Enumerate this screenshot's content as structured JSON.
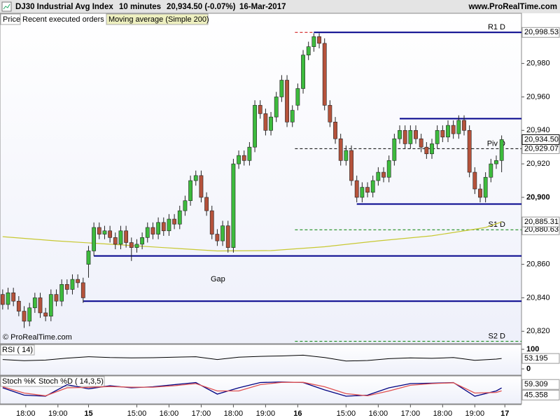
{
  "header": {
    "title": "DJ30 Industrial Avg Index",
    "interval": "10 minutes",
    "quote": "20,934.50 (-0.07%)",
    "date": "16-Mar-2017",
    "site": "www.ProRealTime.com"
  },
  "chart_data": [
    {
      "type": "candlestick",
      "panel_label": "Price",
      "legend": [
        {
          "name": "Recent executed orders",
          "color": "#e05a5a"
        },
        {
          "name": "Moving average (Simple 200)",
          "color": "#c8c832"
        }
      ],
      "up_color": "#3dbb3d",
      "down_color": "#b5523b",
      "xlim": [
        -0.5,
        96.7
      ],
      "ylim": [
        20813,
        21002
      ],
      "yticks": [
        {
          "value": 20820,
          "label": "20,820"
        },
        {
          "value": 20840,
          "label": "20,840"
        },
        {
          "value": 20860,
          "label": "20,860"
        },
        {
          "value": 20880,
          "label": "20,880"
        },
        {
          "value": 20900,
          "label": "20,900"
        },
        {
          "value": 20920,
          "label": "20,920"
        },
        {
          "value": 20940,
          "label": "20,940"
        },
        {
          "value": 20960,
          "label": "20,960"
        },
        {
          "value": 20980,
          "label": "20,980"
        }
      ],
      "xticks": [
        {
          "value": 4.3,
          "label": "18:00"
        },
        {
          "value": 10.3,
          "label": "19:00"
        },
        {
          "value": 16,
          "label": "15"
        },
        {
          "value": 25,
          "label": "15:00"
        },
        {
          "value": 31,
          "label": "16:00"
        },
        {
          "value": 37,
          "label": "17:00"
        },
        {
          "value": 43,
          "label": "18:00"
        },
        {
          "value": 49,
          "label": "19:00"
        },
        {
          "value": 55,
          "label": "16"
        },
        {
          "value": 64,
          "label": "15:00"
        },
        {
          "value": 70,
          "label": "16:00"
        },
        {
          "value": 76,
          "label": "17:00"
        },
        {
          "value": 82,
          "label": "18:00"
        },
        {
          "value": 88,
          "label": "19:00"
        },
        {
          "value": 93.6,
          "label": "17"
        }
      ],
      "open": [
        20842,
        20836,
        20843,
        20838,
        20832,
        20826,
        20834,
        20840,
        20831,
        20829,
        20842,
        20838,
        20848,
        20845,
        20851,
        20849,
        20860,
        20868,
        20882,
        20878,
        20880,
        20876,
        20872,
        20880,
        20873,
        20870,
        20872,
        20876,
        20882,
        20878,
        20885,
        20880,
        20887,
        20884,
        20892,
        20898,
        20910,
        20913,
        20900,
        20892,
        20878,
        20874,
        20883,
        20870,
        20920,
        20925,
        20922,
        20930,
        20955,
        20950,
        20940,
        20948,
        20960,
        20970,
        20945,
        20955,
        20965,
        20985,
        20990,
        20996,
        20992,
        20955,
        20945,
        20935,
        20922,
        20928,
        20910,
        20900,
        20906,
        20903,
        20910,
        20915,
        20912,
        20922,
        20935,
        20940,
        20932,
        20940,
        20935,
        20930,
        20926,
        20932,
        20940,
        20936,
        20943,
        20938,
        20946,
        20940,
        20915,
        20905,
        20900,
        20912,
        20920,
        20922
      ],
      "high": [
        20845,
        20846,
        20846,
        20841,
        20835,
        20837,
        20843,
        20843,
        20834,
        20845,
        20845,
        20851,
        20851,
        20854,
        20854,
        20852,
        20871,
        20885,
        20885,
        20883,
        20883,
        20879,
        20883,
        20883,
        20876,
        20875,
        20879,
        20885,
        20885,
        20888,
        20888,
        20890,
        20890,
        20895,
        20901,
        20913,
        20916,
        20916,
        20903,
        20895,
        20881,
        20886,
        20886,
        20923,
        20928,
        20928,
        20933,
        20958,
        20958,
        20953,
        20951,
        20963,
        20973,
        20973,
        20955,
        20968,
        20988,
        20993,
        20998,
        20998,
        20995,
        20958,
        20948,
        20938,
        20931,
        20931,
        20913,
        20909,
        20909,
        20913,
        20918,
        20918,
        20925,
        20938,
        20943,
        20943,
        20943,
        20943,
        20938,
        20933,
        20935,
        20943,
        20943,
        20946,
        20946,
        20949,
        20949,
        20943,
        20918,
        20908,
        20915,
        20923,
        20925,
        20937
      ],
      "low": [
        20833,
        20833,
        20835,
        20829,
        20822,
        20823,
        20831,
        20828,
        20826,
        20826,
        20835,
        20835,
        20842,
        20842,
        20846,
        20837,
        20852,
        20865,
        20875,
        20875,
        20873,
        20869,
        20869,
        20870,
        20862,
        20867,
        20869,
        20873,
        20875,
        20875,
        20877,
        20877,
        20881,
        20881,
        20889,
        20895,
        20907,
        20897,
        20889,
        20875,
        20871,
        20871,
        20867,
        20867,
        20917,
        20919,
        20919,
        20927,
        20947,
        20937,
        20937,
        20945,
        20957,
        20942,
        20942,
        20952,
        20962,
        20982,
        20987,
        20989,
        20952,
        20942,
        20932,
        20919,
        20919,
        20907,
        20897,
        20897,
        20900,
        20900,
        20907,
        20909,
        20909,
        20919,
        20932,
        20929,
        20929,
        20932,
        20927,
        20923,
        20923,
        20929,
        20933,
        20933,
        20935,
        20935,
        20937,
        20912,
        20902,
        20897,
        20897,
        20909,
        20917,
        20915
      ],
      "close": [
        20836,
        20843,
        20838,
        20832,
        20826,
        20834,
        20840,
        20831,
        20829,
        20842,
        20838,
        20848,
        20845,
        20851,
        20849,
        20840,
        20868,
        20882,
        20878,
        20880,
        20876,
        20872,
        20880,
        20873,
        20870,
        20872,
        20876,
        20882,
        20878,
        20885,
        20880,
        20887,
        20884,
        20892,
        20898,
        20910,
        20913,
        20900,
        20892,
        20878,
        20874,
        20883,
        20870,
        20920,
        20925,
        20922,
        20930,
        20955,
        20950,
        20940,
        20948,
        20960,
        20970,
        20945,
        20952,
        20965,
        20985,
        20990,
        20996,
        20992,
        20955,
        20945,
        20935,
        20922,
        20928,
        20910,
        20900,
        20906,
        20903,
        20910,
        20915,
        20912,
        20922,
        20935,
        20940,
        20932,
        20940,
        20935,
        20930,
        20926,
        20932,
        20940,
        20936,
        20943,
        20938,
        20946,
        20940,
        20915,
        20905,
        20900,
        20912,
        20920,
        20922,
        20934.5
      ],
      "last_price": {
        "value": 20934.5,
        "label": "20,934.50"
      },
      "moving_average": {
        "color": "#c8c832",
        "x": [
          0,
          10,
          20,
          30,
          40,
          50,
          60,
          70,
          80,
          90,
          93
        ],
        "values": [
          20876.5,
          20874,
          20872,
          20870,
          20868,
          20868.2,
          20870.5,
          20874,
          20877,
          20882,
          20885.31
        ],
        "value_labels": [
          null,
          null,
          null,
          null,
          null,
          null,
          null,
          null,
          null,
          null,
          "20,885.31"
        ]
      },
      "levels": [
        {
          "name": "R1 D",
          "value": 20998.53,
          "value_label": "20,998.53",
          "color": "#cc0000"
        },
        {
          "name": "Piv D",
          "value": 20929.07,
          "value_label": "20,929.07",
          "color": "#000000"
        },
        {
          "name": "S1 D",
          "value": 20880.63,
          "value_label": "20,880.63",
          "color": "#008000"
        },
        {
          "name": "S2 D",
          "value": 20814,
          "value_label": null,
          "color": "#008000"
        }
      ],
      "support_lines": {
        "color": "#00008b",
        "values": [
          20998.53,
          20947,
          20896,
          20865,
          20838
        ],
        "from": [
          58,
          74,
          66,
          17,
          15
        ]
      },
      "annotation": "Gap",
      "copyright": "© ProRealTime.com"
    },
    {
      "type": "line",
      "panel_label": "RSI ( 14)",
      "color": "#000000",
      "xlim": [
        -0.5,
        96.7
      ],
      "ylim": [
        0,
        100
      ],
      "yticks": [
        0,
        100
      ],
      "x": [
        0,
        4,
        8,
        12,
        16,
        20,
        24,
        28,
        32,
        36,
        40,
        44,
        48,
        52,
        56,
        60,
        64,
        68,
        72,
        76,
        80,
        84,
        88,
        92,
        93
      ],
      "values": [
        48,
        42,
        45,
        55,
        62,
        58,
        56,
        57,
        60,
        62,
        48,
        60,
        64,
        66,
        70,
        58,
        40,
        43,
        52,
        56,
        54,
        58,
        44,
        50,
        53.195
      ],
      "value_labels": [
        null,
        null,
        null,
        null,
        null,
        null,
        null,
        null,
        null,
        null,
        null,
        null,
        null,
        null,
        null,
        null,
        null,
        null,
        null,
        null,
        null,
        null,
        null,
        null,
        "53.195"
      ]
    },
    {
      "type": "stochastic",
      "xlim": [
        -0.5,
        96.7
      ],
      "ylim": [
        0,
        100
      ],
      "x": [
        0,
        4,
        8,
        12,
        16,
        20,
        24,
        28,
        32,
        36,
        40,
        44,
        48,
        52,
        56,
        60,
        64,
        68,
        72,
        76,
        80,
        84,
        88,
        92,
        93
      ],
      "series": [
        {
          "name": "Stoch %K",
          "color": "#000080",
          "values": [
            60,
            25,
            20,
            75,
            55,
            70,
            60,
            65,
            75,
            85,
            30,
            60,
            85,
            88,
            85,
            50,
            20,
            25,
            60,
            80,
            82,
            85,
            20,
            45,
            59.309
          ],
          "value_labels": [
            null,
            null,
            null,
            null,
            null,
            null,
            null,
            null,
            null,
            null,
            null,
            null,
            null,
            null,
            null,
            null,
            null,
            null,
            null,
            null,
            null,
            null,
            null,
            null,
            "59.309"
          ]
        },
        {
          "name": "Stoch %D ( 14,3,5)",
          "color": "#e05050",
          "values": [
            65,
            35,
            22,
            60,
            62,
            66,
            63,
            63,
            70,
            80,
            45,
            45,
            75,
            86,
            86,
            65,
            32,
            22,
            45,
            72,
            80,
            84,
            35,
            38,
            45.358
          ],
          "value_labels": [
            null,
            null,
            null,
            null,
            null,
            null,
            null,
            null,
            null,
            null,
            null,
            null,
            null,
            null,
            null,
            null,
            null,
            null,
            null,
            null,
            null,
            null,
            null,
            null,
            "45.358"
          ]
        }
      ]
    }
  ]
}
